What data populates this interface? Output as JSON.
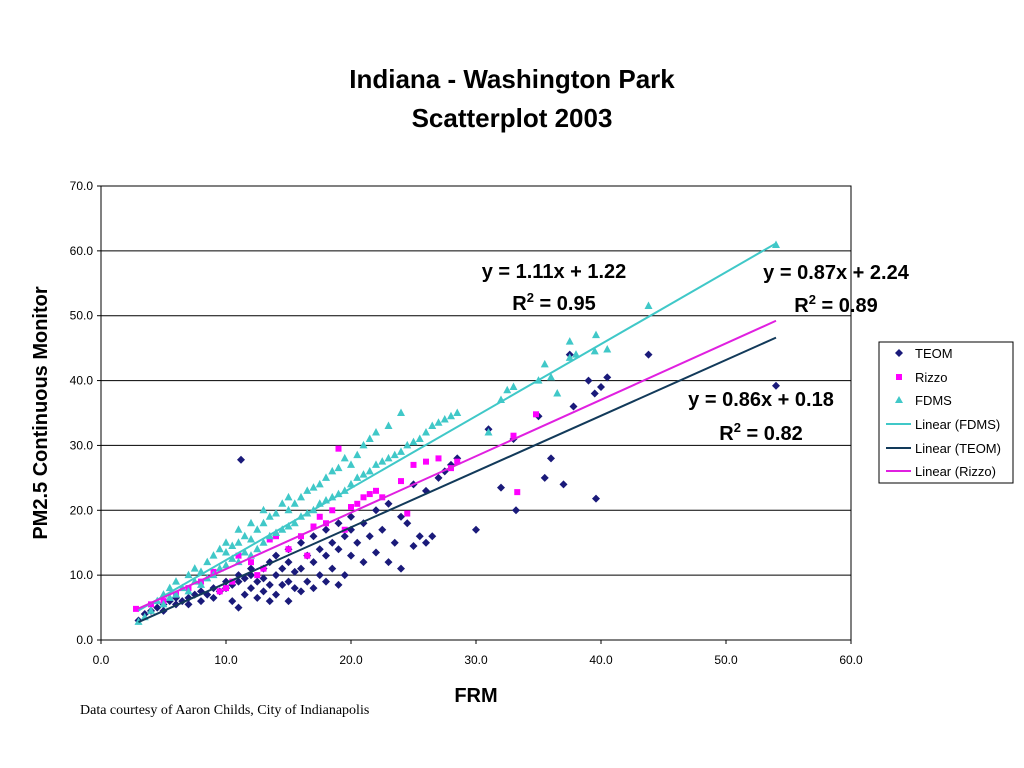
{
  "page": {
    "title_line1": "Indiana - Washington Park",
    "title_line2": "Scatterplot 2003",
    "credit": "Data courtesy of Aaron Childs, City of Indianapolis"
  },
  "chart_data": {
    "type": "scatter",
    "title": "Indiana - Washington Park Scatterplot 2003",
    "xlabel": "FRM",
    "ylabel": "PM2.5 Continuous Monitor",
    "xlim": [
      0,
      60
    ],
    "ylim": [
      0,
      70
    ],
    "xticks": [
      "0.0",
      "10.0",
      "20.0",
      "30.0",
      "40.0",
      "50.0",
      "60.0"
    ],
    "yticks": [
      "0.0",
      "10.0",
      "20.0",
      "30.0",
      "40.0",
      "50.0",
      "60.0",
      "70.0"
    ],
    "grid": "horizontal",
    "legend_position": "right",
    "legend": [
      "TEOM",
      "Rizzo",
      "FDMS",
      "Linear (FDMS)",
      "Linear (TEOM)",
      "Linear (Rizzo)"
    ],
    "colors": {
      "teom": "#1a1a7a",
      "rizzo": "#ff00ff",
      "fdms": "#40c8c8",
      "fdms_fit": "#40c8c8",
      "teom_fit": "#123a5a",
      "rizzo_fit": "#e020e0"
    },
    "series": [
      {
        "name": "TEOM",
        "marker": "diamond",
        "points": [
          [
            3,
            3
          ],
          [
            3.5,
            4
          ],
          [
            4,
            4.5
          ],
          [
            4.5,
            5
          ],
          [
            5,
            4.5
          ],
          [
            5,
            5.5
          ],
          [
            5.5,
            6
          ],
          [
            6,
            5.5
          ],
          [
            6,
            6.5
          ],
          [
            6.5,
            6
          ],
          [
            7,
            5.5
          ],
          [
            7,
            6.5
          ],
          [
            7.5,
            7
          ],
          [
            8,
            6
          ],
          [
            8,
            7.5
          ],
          [
            8.5,
            7
          ],
          [
            9,
            6.5
          ],
          [
            9,
            8
          ],
          [
            9.5,
            7.5
          ],
          [
            10,
            8
          ],
          [
            10,
            9
          ],
          [
            10.5,
            6
          ],
          [
            10.5,
            8.5
          ],
          [
            11,
            5
          ],
          [
            11,
            9
          ],
          [
            11,
            10
          ],
          [
            11.2,
            27.8
          ],
          [
            11.5,
            7
          ],
          [
            11.5,
            9.5
          ],
          [
            12,
            8
          ],
          [
            12,
            10
          ],
          [
            12,
            11
          ],
          [
            12.5,
            6.5
          ],
          [
            12.5,
            9
          ],
          [
            13,
            7.5
          ],
          [
            13,
            9.5
          ],
          [
            13,
            11
          ],
          [
            13.5,
            6
          ],
          [
            13.5,
            8.5
          ],
          [
            13.5,
            12
          ],
          [
            14,
            7
          ],
          [
            14,
            10
          ],
          [
            14,
            13
          ],
          [
            14.5,
            8.5
          ],
          [
            14.5,
            11
          ],
          [
            15,
            6
          ],
          [
            15,
            9
          ],
          [
            15,
            12
          ],
          [
            15,
            14
          ],
          [
            15.5,
            8
          ],
          [
            15.5,
            10.5
          ],
          [
            16,
            7.5
          ],
          [
            16,
            11
          ],
          [
            16,
            15
          ],
          [
            16.5,
            9
          ],
          [
            16.5,
            13
          ],
          [
            17,
            8
          ],
          [
            17,
            12
          ],
          [
            17,
            16
          ],
          [
            17.5,
            10
          ],
          [
            17.5,
            14
          ],
          [
            18,
            9
          ],
          [
            18,
            13
          ],
          [
            18,
            17
          ],
          [
            18.5,
            11
          ],
          [
            18.5,
            15
          ],
          [
            19,
            8.5
          ],
          [
            19,
            14
          ],
          [
            19,
            18
          ],
          [
            19.5,
            10
          ],
          [
            19.5,
            16
          ],
          [
            20,
            13
          ],
          [
            20,
            17
          ],
          [
            20,
            19
          ],
          [
            20.5,
            15
          ],
          [
            21,
            12
          ],
          [
            21,
            18
          ],
          [
            21.5,
            16
          ],
          [
            22,
            13.5
          ],
          [
            22,
            20
          ],
          [
            22.5,
            17
          ],
          [
            23,
            12
          ],
          [
            23,
            21
          ],
          [
            23.5,
            15
          ],
          [
            24,
            11
          ],
          [
            24,
            19
          ],
          [
            24.5,
            18
          ],
          [
            25,
            14.5
          ],
          [
            25,
            24
          ],
          [
            25.5,
            16
          ],
          [
            26,
            15
          ],
          [
            26,
            23
          ],
          [
            26.5,
            16
          ],
          [
            27,
            25
          ],
          [
            27.5,
            26
          ],
          [
            28,
            27
          ],
          [
            28.5,
            28
          ],
          [
            30,
            17
          ],
          [
            31,
            32.5
          ],
          [
            32,
            23.5
          ],
          [
            33,
            31
          ],
          [
            33.2,
            20
          ],
          [
            35,
            34.5
          ],
          [
            35.5,
            25
          ],
          [
            36,
            28
          ],
          [
            37,
            24
          ],
          [
            37.5,
            44
          ],
          [
            37.8,
            36
          ],
          [
            39,
            40
          ],
          [
            39.5,
            38
          ],
          [
            39.6,
            21.8
          ],
          [
            40,
            39
          ],
          [
            40.5,
            40.5
          ],
          [
            43.8,
            44
          ],
          [
            54,
            39.2
          ]
        ]
      },
      {
        "name": "Rizzo",
        "marker": "square",
        "points": [
          [
            2.8,
            4.8
          ],
          [
            4,
            5.5
          ],
          [
            5,
            6
          ],
          [
            6,
            7
          ],
          [
            7,
            8
          ],
          [
            8,
            9
          ],
          [
            9,
            10.5
          ],
          [
            9.5,
            7.5
          ],
          [
            10,
            8
          ],
          [
            10.5,
            9
          ],
          [
            11,
            13
          ],
          [
            12,
            12
          ],
          [
            12.5,
            10
          ],
          [
            13,
            11
          ],
          [
            13.5,
            15.5
          ],
          [
            14,
            16
          ],
          [
            15,
            14
          ],
          [
            16,
            16
          ],
          [
            16.5,
            13
          ],
          [
            17,
            17.5
          ],
          [
            17.5,
            19
          ],
          [
            18,
            18
          ],
          [
            18.5,
            20
          ],
          [
            19,
            29.5
          ],
          [
            19.5,
            17
          ],
          [
            20,
            20.5
          ],
          [
            20.5,
            21
          ],
          [
            21,
            22
          ],
          [
            21.5,
            22.5
          ],
          [
            22,
            23
          ],
          [
            22.5,
            22
          ],
          [
            24,
            24.5
          ],
          [
            24.5,
            19.5
          ],
          [
            25,
            27
          ],
          [
            26,
            27.5
          ],
          [
            27,
            28
          ],
          [
            28,
            26.5
          ],
          [
            28.5,
            27.5
          ],
          [
            33,
            31.5
          ],
          [
            33.3,
            22.8
          ],
          [
            34.8,
            34.8
          ]
        ]
      },
      {
        "name": "FDMS",
        "marker": "triangle",
        "points": [
          [
            3,
            2.8
          ],
          [
            3.5,
            3.5
          ],
          [
            4,
            4.5
          ],
          [
            4.5,
            6
          ],
          [
            5,
            5.5
          ],
          [
            5,
            7
          ],
          [
            5.5,
            6.5
          ],
          [
            5.5,
            8
          ],
          [
            6,
            7
          ],
          [
            6,
            9
          ],
          [
            6.5,
            8
          ],
          [
            7,
            7.5
          ],
          [
            7,
            10
          ],
          [
            7.5,
            9
          ],
          [
            7.5,
            11
          ],
          [
            8,
            8.5
          ],
          [
            8,
            10.5
          ],
          [
            8.5,
            9.5
          ],
          [
            8.5,
            12
          ],
          [
            9,
            10
          ],
          [
            9,
            13
          ],
          [
            9.5,
            11
          ],
          [
            9.5,
            14
          ],
          [
            10,
            11.5
          ],
          [
            10,
            13.5
          ],
          [
            10,
            15
          ],
          [
            10.5,
            12.5
          ],
          [
            10.5,
            14.5
          ],
          [
            11,
            12
          ],
          [
            11,
            15
          ],
          [
            11,
            17
          ],
          [
            11.5,
            13.5
          ],
          [
            11.5,
            16
          ],
          [
            12,
            13
          ],
          [
            12,
            15.5
          ],
          [
            12,
            18
          ],
          [
            12.5,
            14
          ],
          [
            12.5,
            17
          ],
          [
            13,
            15
          ],
          [
            13,
            18
          ],
          [
            13,
            20
          ],
          [
            13.5,
            16
          ],
          [
            13.5,
            19
          ],
          [
            14,
            16.5
          ],
          [
            14,
            19.5
          ],
          [
            14.5,
            17
          ],
          [
            14.5,
            21
          ],
          [
            15,
            17.5
          ],
          [
            15,
            20
          ],
          [
            15,
            22
          ],
          [
            15.5,
            18
          ],
          [
            15.5,
            21
          ],
          [
            16,
            19
          ],
          [
            16,
            22
          ],
          [
            16.5,
            19.5
          ],
          [
            16.5,
            23
          ],
          [
            17,
            20
          ],
          [
            17,
            23.5
          ],
          [
            17.5,
            21
          ],
          [
            17.5,
            24
          ],
          [
            18,
            21.5
          ],
          [
            18,
            25
          ],
          [
            18.5,
            22
          ],
          [
            18.5,
            26
          ],
          [
            19,
            22.5
          ],
          [
            19,
            26.5
          ],
          [
            19.5,
            23
          ],
          [
            19.5,
            28
          ],
          [
            20,
            24
          ],
          [
            20,
            27
          ],
          [
            20.5,
            25
          ],
          [
            20.5,
            28.5
          ],
          [
            21,
            25.5
          ],
          [
            21,
            30
          ],
          [
            21.5,
            26
          ],
          [
            21.5,
            31
          ],
          [
            22,
            27
          ],
          [
            22,
            32
          ],
          [
            22.5,
            27.5
          ],
          [
            23,
            28
          ],
          [
            23,
            33
          ],
          [
            23.5,
            28.5
          ],
          [
            24,
            29
          ],
          [
            24,
            35
          ],
          [
            24.5,
            30
          ],
          [
            25,
            30.5
          ],
          [
            25.5,
            31
          ],
          [
            26,
            32
          ],
          [
            26.5,
            33
          ],
          [
            27,
            33.5
          ],
          [
            27.5,
            34
          ],
          [
            28,
            34.5
          ],
          [
            28.5,
            35
          ],
          [
            31,
            32
          ],
          [
            32,
            37
          ],
          [
            32.5,
            38.5
          ],
          [
            33,
            39
          ],
          [
            35,
            40
          ],
          [
            35.5,
            42.5
          ],
          [
            36,
            40.5
          ],
          [
            36.5,
            38
          ],
          [
            37.5,
            43.5
          ],
          [
            37.5,
            46
          ],
          [
            38,
            44
          ],
          [
            39.5,
            44.5
          ],
          [
            39.6,
            47
          ],
          [
            40.5,
            44.8
          ],
          [
            43.8,
            51.5
          ],
          [
            54,
            60.9
          ]
        ]
      }
    ],
    "trendlines": [
      {
        "name": "Linear (FDMS)",
        "slope": 1.11,
        "intercept": 1.22,
        "x_range": [
          3,
          54
        ],
        "equation": "y = 1.11x + 1.22",
        "r2_label": "R",
        "r2_sup": "2",
        "r2_value": " = 0.95"
      },
      {
        "name": "Linear (TEOM)",
        "slope": 0.86,
        "intercept": 0.18,
        "x_range": [
          3,
          54
        ],
        "equation": "y = 0.86x + 0.18",
        "r2_label": "R",
        "r2_sup": "2",
        "r2_value": " = 0.82"
      },
      {
        "name": "Linear (Rizzo)",
        "slope": 0.87,
        "intercept": 2.24,
        "x_range": [
          3,
          54
        ],
        "equation": "y = 0.87x + 2.24",
        "r2_label": "R",
        "r2_sup": "2",
        "r2_value": " = 0.89"
      }
    ]
  }
}
